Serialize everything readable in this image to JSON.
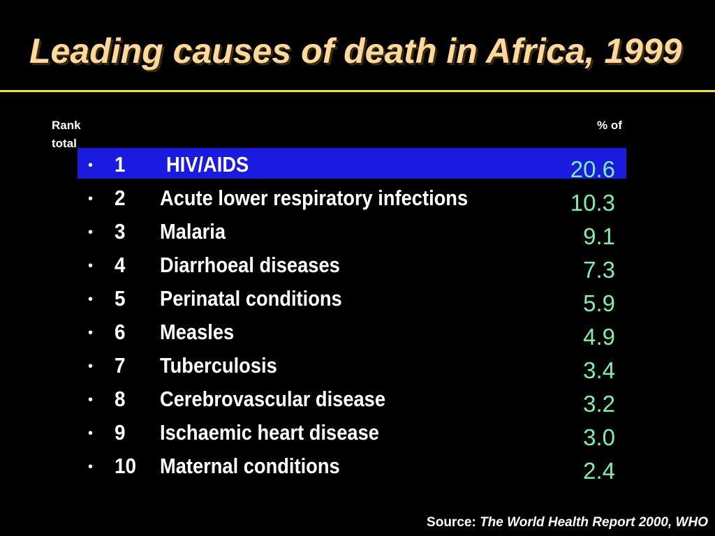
{
  "title": "Leading causes of death in Africa, 1999",
  "headers": {
    "rank": "Rank",
    "total": "total",
    "pct_of": "% of"
  },
  "rows": [
    {
      "rank": "1",
      "cause": "HIV/AIDS",
      "value": "20.6"
    },
    {
      "rank": "2",
      "cause": "Acute lower respiratory infections",
      "value": "10.3"
    },
    {
      "rank": "3",
      "cause": "Malaria",
      "value": "9.1"
    },
    {
      "rank": "4",
      "cause": "Diarrhoeal diseases",
      "value": "7.3"
    },
    {
      "rank": "5",
      "cause": "Perinatal conditions",
      "value": "5.9"
    },
    {
      "rank": "6",
      "cause": "Measles",
      "value": "4.9"
    },
    {
      "rank": "7",
      "cause": "Tuberculosis",
      "value": "3.4"
    },
    {
      "rank": "8",
      "cause": "Cerebrovascular disease",
      "value": "3.2"
    },
    {
      "rank": "9",
      "cause": "Ischaemic heart disease",
      "value": "3.0"
    },
    {
      "rank": "10",
      "cause": "Maternal conditions",
      "value": "2.4"
    }
  ],
  "source": {
    "label": "Source:",
    "reference": "The World Health Report 2000, WHO"
  },
  "colors": {
    "background": "#000000",
    "title": "#ffd99a",
    "rule": "#f5e61e",
    "highlight": "#1a1ae0",
    "value": "#7ff0a8"
  }
}
